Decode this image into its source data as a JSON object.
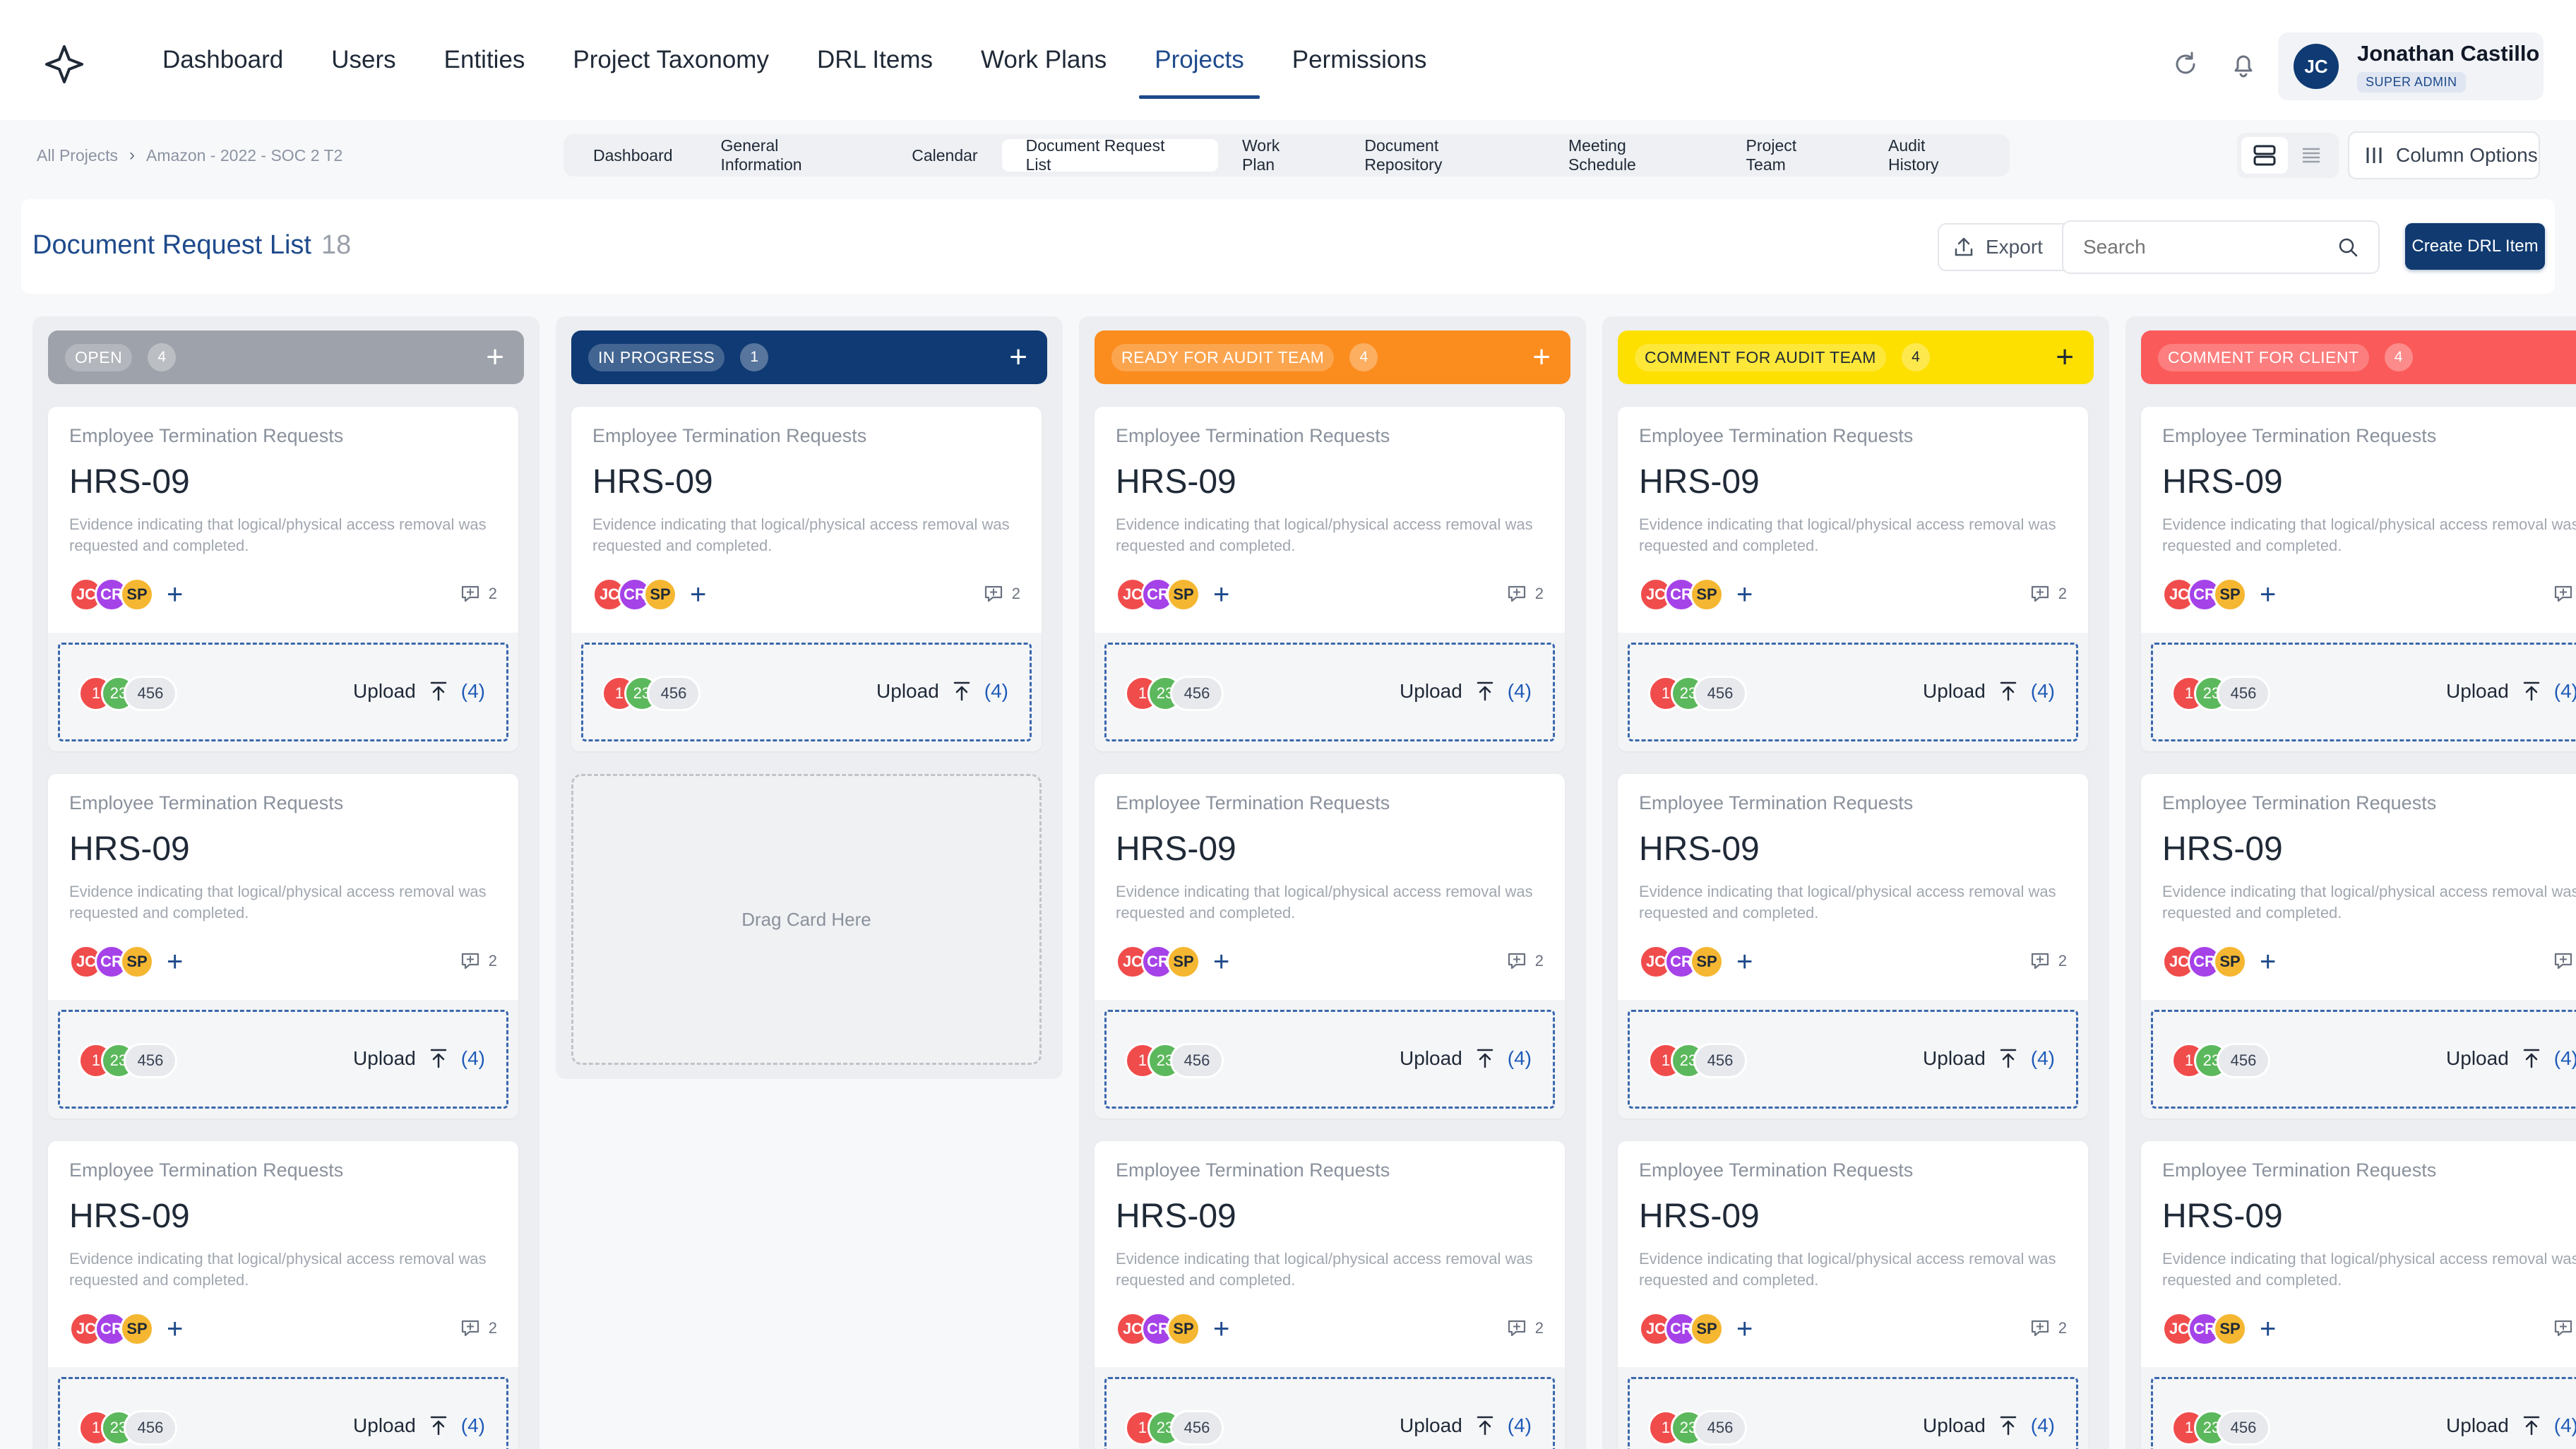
{
  "nav": {
    "items": [
      "Dashboard",
      "Users",
      "Entities",
      "Project Taxonomy",
      "DRL Items",
      "Work Plans",
      "Projects",
      "Permissions"
    ],
    "active_index": 6
  },
  "user": {
    "initials": "JC",
    "name": "Jonathan Castillo",
    "role": "SUPER ADMIN"
  },
  "breadcrumb": {
    "root": "All Projects",
    "current": "Amazon - 2022 - SOC 2 T2"
  },
  "subtabs": {
    "items": [
      "Dashboard",
      "General Information",
      "Calendar",
      "Document Request List",
      "Work Plan",
      "Document Repository",
      "Meeting Schedule",
      "Project Team",
      "Audit History"
    ],
    "active_index": 3
  },
  "toolbar": {
    "column_options": "Column Options",
    "export": "Export",
    "search_placeholder": "Search",
    "create": "Create DRL Item"
  },
  "page": {
    "title": "Document Request List",
    "count": "18"
  },
  "colors": {
    "brand": "#103a70",
    "open": "#9ea2aa",
    "in_progress": "#0f3a73",
    "ready_for_audit": "#fb8c1e",
    "comment_audit": "#fde000",
    "comment_client": "#fb5a5a"
  },
  "card_template": {
    "category": "Employee Termination Requests",
    "id": "HRS-09",
    "description": "Evidence indicating that logical/physical access removal was requested and completed.",
    "people": [
      "JC",
      "CR",
      "SP"
    ],
    "comments": "2",
    "files": [
      "1",
      "23",
      "456"
    ],
    "upload_label": "Upload",
    "upload_count": "(4)"
  },
  "drag_placeholder": "Drag Card Here",
  "columns": [
    {
      "label": "OPEN",
      "count": "4",
      "color": "#9ea2aa",
      "text": "#ffffff",
      "cards": 3
    },
    {
      "label": "IN PROGRESS",
      "count": "1",
      "color": "#0f3a73",
      "text": "#ffffff",
      "cards": 1
    },
    {
      "label": "READY FOR AUDIT TEAM",
      "count": "4",
      "color": "#fb8c1e",
      "text": "#ffffff",
      "cards": 3
    },
    {
      "label": "COMMENT FOR AUDIT TEAM",
      "count": "4",
      "color": "#fde000",
      "text": "#1f2937",
      "cards": 3
    },
    {
      "label": "COMMENT FOR CLIENT",
      "count": "4",
      "color": "#fb5a5a",
      "text": "#ffffff",
      "cards": 3
    }
  ]
}
